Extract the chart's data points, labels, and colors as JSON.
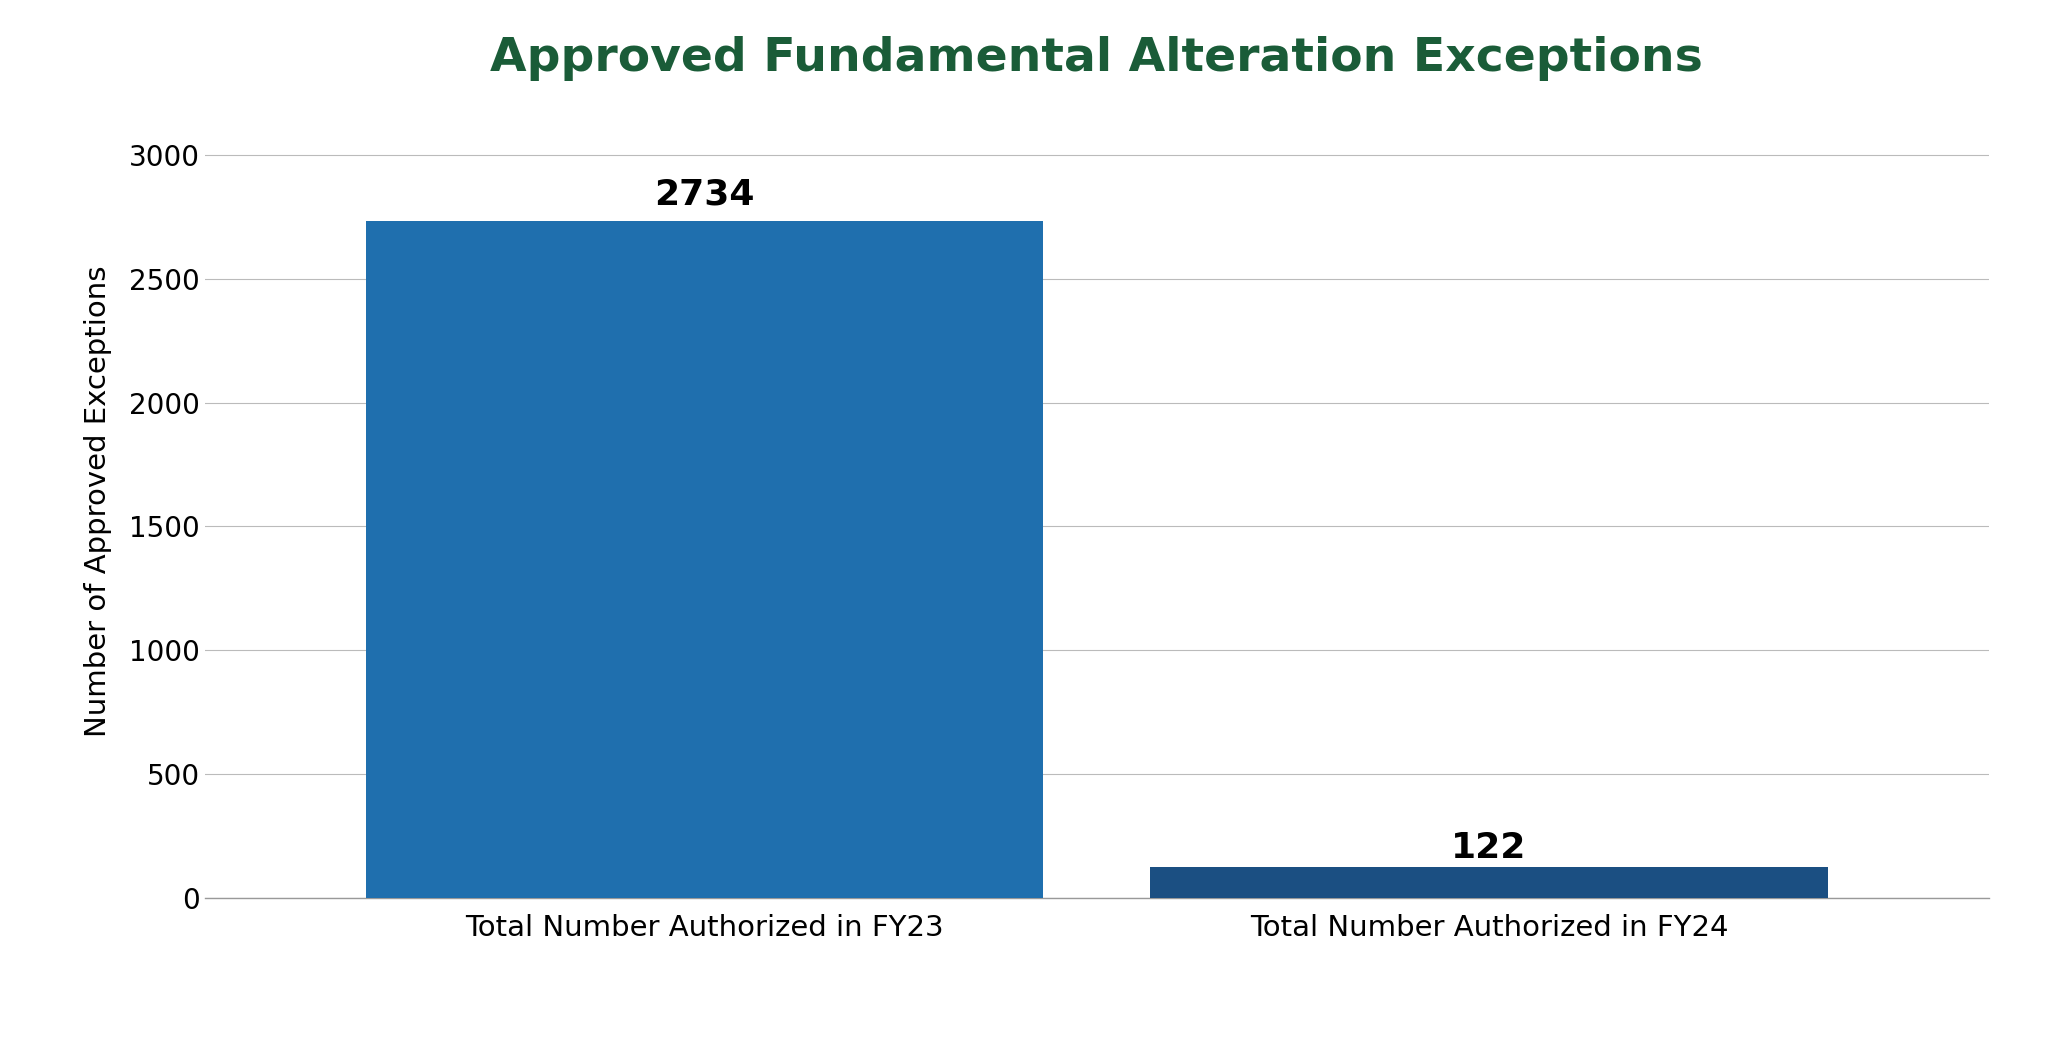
{
  "categories": [
    "Total Number Authorized in FY23",
    "Total Number Authorized in FY24"
  ],
  "values": [
    2734,
    122
  ],
  "bar_colors": [
    "#1F6FAE",
    "#1B4F82"
  ],
  "title": "Approved Fundamental Alteration Exceptions",
  "ylabel": "Number of Approved Exceptions",
  "ylim": [
    0,
    3200
  ],
  "yticks": [
    0,
    500,
    1000,
    1500,
    2000,
    2500,
    3000
  ],
  "title_color": "#1A5C38",
  "title_fontsize": 34,
  "label_fontsize": 21,
  "tick_fontsize": 20,
  "value_label_fontsize": 26,
  "bar_width": 0.38,
  "x_positions": [
    0.28,
    0.72
  ],
  "xlim": [
    0.0,
    1.0
  ],
  "background_color": "#FFFFFF",
  "grid_color": "#BBBBBB"
}
